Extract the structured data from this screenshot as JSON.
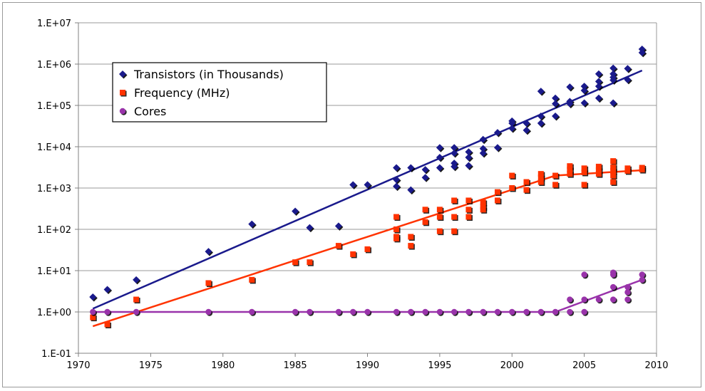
{
  "chart_data": {
    "type": "scatter",
    "yscale": "log",
    "xlim": [
      1970,
      2010
    ],
    "ylim": [
      0.1,
      10000000
    ],
    "grid": true,
    "legend_position": "top-left",
    "x_tick_labels": [
      "1970",
      "1975",
      "1980",
      "1985",
      "1990",
      "1995",
      "2000",
      "2005",
      "2010"
    ],
    "y_tick_labels": [
      "1.E-01",
      "1.E+00",
      "1.E+01",
      "1.E+02",
      "1.E+03",
      "1.E+04",
      "1.E+05",
      "1.E+06",
      "1.E+07"
    ],
    "x_ticks": [
      1970,
      1975,
      1980,
      1985,
      1990,
      1995,
      2000,
      2005,
      2010
    ],
    "y_ticks": [
      0.1,
      1,
      10,
      100,
      1000,
      10000,
      100000,
      1000000,
      10000000
    ],
    "series": [
      {
        "name": "Transistors (in Thousands)",
        "marker": "diamond",
        "color": "#1a1a8c",
        "points": [
          [
            1971,
            2.3
          ],
          [
            1972,
            3.5
          ],
          [
            1974,
            6
          ],
          [
            1979,
            29
          ],
          [
            1982,
            134
          ],
          [
            1985,
            275
          ],
          [
            1986,
            110
          ],
          [
            1988,
            120
          ],
          [
            1989,
            1200
          ],
          [
            1990,
            1200
          ],
          [
            1992,
            3100
          ],
          [
            1992,
            1600
          ],
          [
            1992,
            1100
          ],
          [
            1993,
            3100
          ],
          [
            1993,
            900
          ],
          [
            1994,
            2800
          ],
          [
            1994,
            1800
          ],
          [
            1995,
            9500
          ],
          [
            1995,
            5500
          ],
          [
            1995,
            3100
          ],
          [
            1996,
            9500
          ],
          [
            1996,
            7000
          ],
          [
            1996,
            4000
          ],
          [
            1996,
            3300
          ],
          [
            1997,
            7500
          ],
          [
            1997,
            5500
          ],
          [
            1997,
            3500
          ],
          [
            1998,
            15000
          ],
          [
            1998,
            9000
          ],
          [
            1998,
            7000
          ],
          [
            1999,
            22000
          ],
          [
            1999,
            9500
          ],
          [
            2000,
            42000
          ],
          [
            2000,
            37000
          ],
          [
            2000,
            28000
          ],
          [
            2001,
            37000
          ],
          [
            2001,
            25000
          ],
          [
            2002,
            220000
          ],
          [
            2002,
            55000
          ],
          [
            2002,
            37000
          ],
          [
            2003,
            150000
          ],
          [
            2003,
            110000
          ],
          [
            2003,
            55000
          ],
          [
            2004,
            280000
          ],
          [
            2004,
            125000
          ],
          [
            2004,
            110000
          ],
          [
            2005,
            290000
          ],
          [
            2005,
            230000
          ],
          [
            2005,
            115000
          ],
          [
            2006,
            580000
          ],
          [
            2006,
            380000
          ],
          [
            2006,
            290000
          ],
          [
            2006,
            150000
          ],
          [
            2007,
            800000
          ],
          [
            2007,
            580000
          ],
          [
            2007,
            480000
          ],
          [
            2007,
            410000
          ],
          [
            2007,
            115000
          ],
          [
            2008,
            780000
          ],
          [
            2008,
            420000
          ],
          [
            2009,
            2300000
          ],
          [
            2009,
            1900000
          ]
        ],
        "trend": [
          [
            1971,
            1.2
          ],
          [
            2009,
            700000
          ]
        ]
      },
      {
        "name": "Frequency (MHz)",
        "marker": "square",
        "color": "#ff3300",
        "points": [
          [
            1971,
            0.74
          ],
          [
            1972,
            0.5
          ],
          [
            1974,
            2
          ],
          [
            1979,
            5
          ],
          [
            1982,
            6
          ],
          [
            1985,
            16
          ],
          [
            1986,
            16
          ],
          [
            1988,
            40
          ],
          [
            1989,
            25
          ],
          [
            1990,
            33
          ],
          [
            1992,
            200
          ],
          [
            1992,
            100
          ],
          [
            1992,
            66
          ],
          [
            1992,
            60
          ],
          [
            1993,
            66
          ],
          [
            1993,
            40
          ],
          [
            1994,
            300
          ],
          [
            1994,
            150
          ],
          [
            1995,
            300
          ],
          [
            1995,
            200
          ],
          [
            1995,
            90
          ],
          [
            1996,
            500
          ],
          [
            1996,
            200
          ],
          [
            1996,
            90
          ],
          [
            1997,
            500
          ],
          [
            1997,
            300
          ],
          [
            1997,
            200
          ],
          [
            1998,
            450
          ],
          [
            1998,
            350
          ],
          [
            1998,
            300
          ],
          [
            1999,
            800
          ],
          [
            1999,
            500
          ],
          [
            2000,
            2000
          ],
          [
            2000,
            1000
          ],
          [
            2001,
            1400
          ],
          [
            2001,
            900
          ],
          [
            2002,
            2200
          ],
          [
            2002,
            1800
          ],
          [
            2002,
            1400
          ],
          [
            2003,
            2000
          ],
          [
            2003,
            1200
          ],
          [
            2004,
            3400
          ],
          [
            2004,
            2800
          ],
          [
            2004,
            2200
          ],
          [
            2005,
            3000
          ],
          [
            2005,
            2400
          ],
          [
            2005,
            1200
          ],
          [
            2006,
            3300
          ],
          [
            2006,
            2700
          ],
          [
            2006,
            2200
          ],
          [
            2007,
            4500
          ],
          [
            2007,
            3200
          ],
          [
            2007,
            2600
          ],
          [
            2007,
            2000
          ],
          [
            2007,
            1400
          ],
          [
            2008,
            3000
          ],
          [
            2008,
            2600
          ],
          [
            2009,
            3100
          ],
          [
            2009,
            2800
          ]
        ],
        "trend": [
          [
            1971,
            0.45
          ],
          [
            2003,
            2000
          ],
          [
            2009,
            2700
          ]
        ]
      },
      {
        "name": "Cores",
        "marker": "circle",
        "color": "#9933aa",
        "points": [
          [
            1971,
            1
          ],
          [
            1972,
            1
          ],
          [
            1974,
            1
          ],
          [
            1979,
            1
          ],
          [
            1982,
            1
          ],
          [
            1985,
            1
          ],
          [
            1986,
            1
          ],
          [
            1988,
            1
          ],
          [
            1989,
            1
          ],
          [
            1990,
            1
          ],
          [
            1992,
            1
          ],
          [
            1993,
            1
          ],
          [
            1994,
            1
          ],
          [
            1995,
            1
          ],
          [
            1996,
            1
          ],
          [
            1997,
            1
          ],
          [
            1998,
            1
          ],
          [
            1999,
            1
          ],
          [
            2000,
            1
          ],
          [
            2001,
            1
          ],
          [
            2002,
            1
          ],
          [
            2003,
            1
          ],
          [
            2004,
            2
          ],
          [
            2004,
            1
          ],
          [
            2005,
            8
          ],
          [
            2005,
            2
          ],
          [
            2005,
            1
          ],
          [
            2006,
            2
          ],
          [
            2007,
            9
          ],
          [
            2007,
            8
          ],
          [
            2007,
            4
          ],
          [
            2007,
            2
          ],
          [
            2008,
            4
          ],
          [
            2008,
            3
          ],
          [
            2008,
            2
          ],
          [
            2009,
            8
          ],
          [
            2009,
            6
          ]
        ],
        "trend": [
          [
            1971,
            1
          ],
          [
            2003,
            1
          ],
          [
            2009,
            6
          ]
        ]
      }
    ]
  }
}
